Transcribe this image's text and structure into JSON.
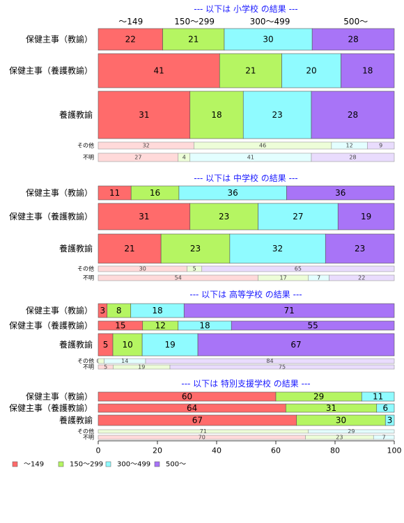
{
  "chart_data": {
    "type": "bar",
    "orientation": "horizontal",
    "stacked": "percent",
    "categories": [
      "～149",
      "150～299",
      "300～499",
      "500～"
    ],
    "colors": [
      "#ff6b6b",
      "#b5f562",
      "#8ffbff",
      "#a874f7"
    ],
    "xlim": [
      0,
      100
    ],
    "xticks": [
      0,
      20,
      40,
      60,
      80,
      100
    ],
    "panels": [
      {
        "title": "--- 以下は 小学校 の結果 ---",
        "column_headers": [
          "～149",
          "150～299",
          "300～499",
          "500～"
        ],
        "rows": [
          {
            "label": "保健主事（教諭）",
            "values": [
              22,
              21,
              30,
              28
            ]
          },
          {
            "label": "保健主事（養護教諭）",
            "values": [
              41,
              21,
              20,
              18
            ]
          },
          {
            "label": "養護教諭",
            "values": [
              31,
              18,
              23,
              28
            ]
          },
          {
            "label": "その他",
            "values": [
              32,
              46,
              12,
              9
            ]
          },
          {
            "label": "不明",
            "values": [
              27,
              4,
              41,
              28
            ]
          }
        ]
      },
      {
        "title": "--- 以下は 中学校 の結果 ---",
        "rows": [
          {
            "label": "保健主事（教諭）",
            "values": [
              11,
              16,
              36,
              36
            ]
          },
          {
            "label": "保健主事（養護教諭）",
            "values": [
              31,
              23,
              27,
              19
            ]
          },
          {
            "label": "養護教諭",
            "values": [
              21,
              23,
              32,
              23
            ]
          },
          {
            "label": "その他",
            "values": [
              30,
              5,
              0,
              65
            ]
          },
          {
            "label": "不明",
            "values": [
              54,
              17,
              7,
              22
            ]
          }
        ]
      },
      {
        "title": "--- 以下は 高等学校 の結果 ---",
        "rows": [
          {
            "label": "保健主事（教諭）",
            "values": [
              3,
              8,
              18,
              71
            ]
          },
          {
            "label": "保健主事（養護教諭）",
            "values": [
              15,
              12,
              18,
              55
            ]
          },
          {
            "label": "養護教諭",
            "values": [
              5,
              10,
              19,
              67
            ]
          },
          {
            "label": "その他",
            "values": [
              0,
              2,
              14,
              84
            ],
            "labels": [
              "0",
              "",
              "14",
              "84"
            ]
          },
          {
            "label": "不明",
            "values": [
              5,
              19,
              0,
              75
            ],
            "labels": [
              "5",
              "19",
              "",
              "75"
            ]
          }
        ]
      },
      {
        "title": "--- 以下は 特別支援学校 の結果 ---",
        "rows": [
          {
            "label": "保健主事（教諭）",
            "values": [
              60,
              29,
              11,
              0
            ]
          },
          {
            "label": "保健主事（養護教諭）",
            "values": [
              64,
              31,
              6,
              0
            ]
          },
          {
            "label": "養護教諭",
            "values": [
              67,
              30,
              3,
              0
            ]
          },
          {
            "label": "その他",
            "values": [
              0,
              71,
              29,
              0
            ]
          },
          {
            "label": "不明",
            "values": [
              70,
              23,
              7,
              0
            ]
          }
        ]
      }
    ],
    "legend": [
      "～149",
      "150～299",
      "300～499",
      "500～"
    ],
    "legend_position": "bottom-left",
    "grid": false
  }
}
